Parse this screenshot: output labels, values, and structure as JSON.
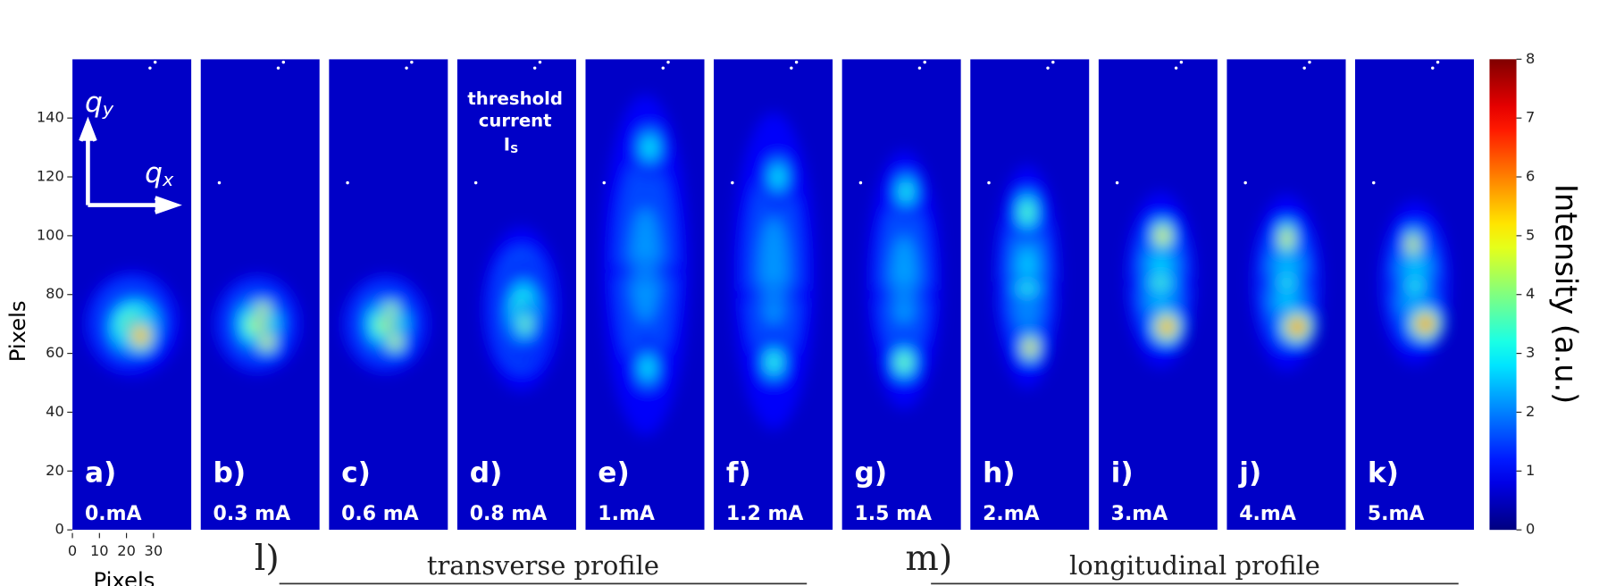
{
  "chart_data": {
    "type": "heatmap-panels",
    "y_label": "Pixels",
    "x_label": "Pixels",
    "ylim": [
      0,
      160
    ],
    "yticks": [
      0,
      20,
      40,
      60,
      80,
      100,
      120,
      140
    ],
    "xlim": [
      0,
      44
    ],
    "xticks": [
      0,
      10,
      20,
      30
    ],
    "panels": [
      {
        "label": "a)",
        "current": "0.mA"
      },
      {
        "label": "b)",
        "current": "0.3 mA"
      },
      {
        "label": "c)",
        "current": "0.6 mA"
      },
      {
        "label": "d)",
        "current": "0.8 mA"
      },
      {
        "label": "e)",
        "current": "1.mA"
      },
      {
        "label": "f)",
        "current": "1.2 mA"
      },
      {
        "label": "g)",
        "current": "1.5 mA"
      },
      {
        "label": "h)",
        "current": "2.mA"
      },
      {
        "label": "i)",
        "current": "3.mA"
      },
      {
        "label": "j)",
        "current": "4.mA"
      },
      {
        "label": "k)",
        "current": "5.mA"
      }
    ],
    "axis_annotation": {
      "qy": "q",
      "qy_sub": "y",
      "qx": "q",
      "qx_sub": "x"
    },
    "threshold_note": {
      "line1": "threshold",
      "line2": "current",
      "symbol": "I",
      "symbol_sub": "S"
    },
    "colorbar": {
      "label": "Intensity (a.u.)",
      "lim": [
        0,
        8
      ],
      "ticks": [
        0,
        1,
        2,
        3,
        4,
        5,
        6,
        7,
        8
      ]
    },
    "sections": [
      {
        "label": "l)",
        "title": "transverse profile"
      },
      {
        "label": "m)",
        "title": "longitudinal profile"
      }
    ]
  }
}
